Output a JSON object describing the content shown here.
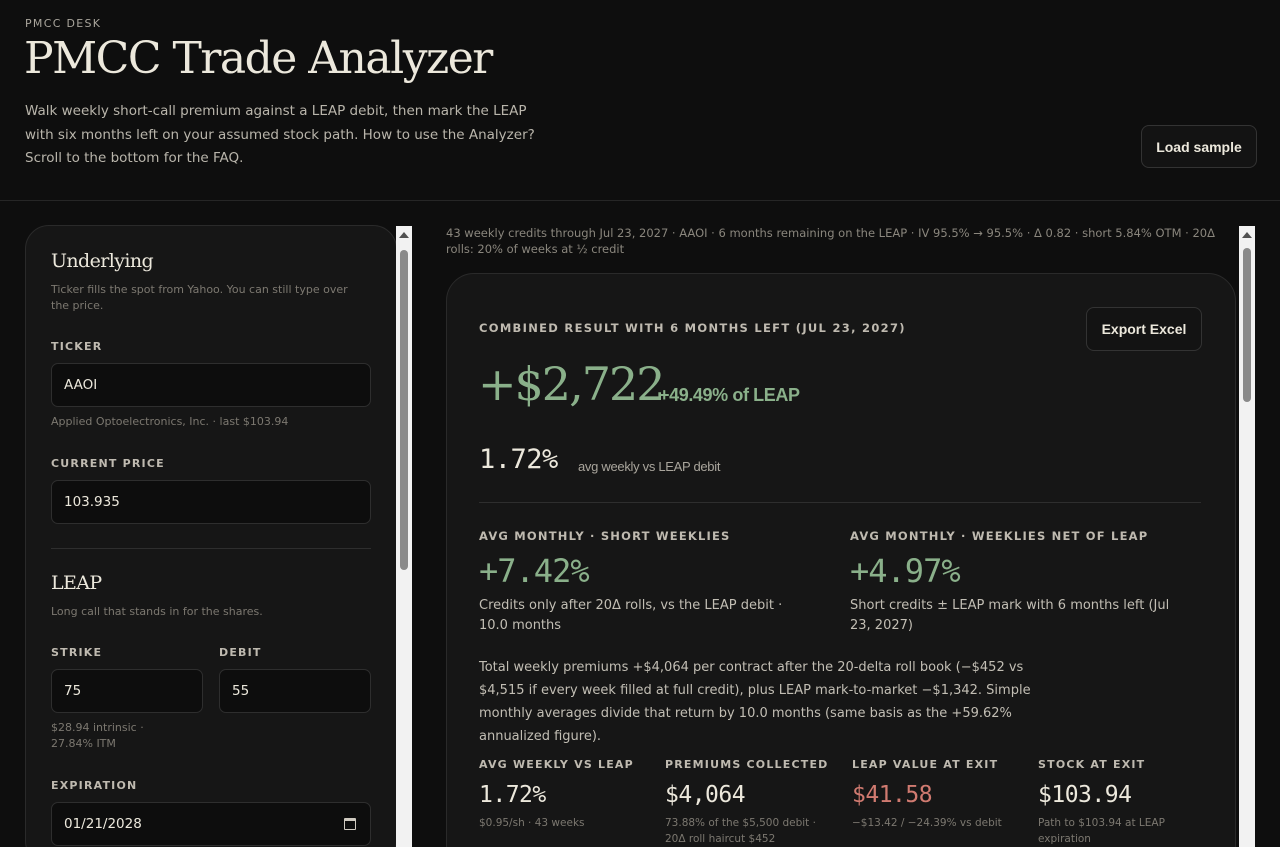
{
  "header": {
    "eyebrow": "PMCC DESK",
    "title": "PMCC Trade Analyzer",
    "subtitle": "Walk weekly short-call premium against a LEAP debit, then mark the LEAP with six months left on your assumed stock path. How to use the Analyzer? Scroll to the bottom for the FAQ.",
    "load_sample_label": "Load sample"
  },
  "underlying": {
    "title": "Underlying",
    "description": "Ticker fills the spot from Yahoo. You can still type over the price.",
    "ticker_label": "TICKER",
    "ticker_value": "AAOI",
    "ticker_hint": "Applied Optoelectronics, Inc. · last $103.94",
    "price_label": "CURRENT PRICE",
    "price_value": "103.935"
  },
  "leap": {
    "title": "LEAP",
    "description": "Long call that stands in for the shares.",
    "strike_label": "STRIKE",
    "strike_value": "75",
    "debit_label": "DEBIT",
    "debit_value": "55",
    "strike_hint_1": "$28.94 intrinsic ·",
    "strike_hint_2": "27.84% ITM",
    "expiration_label": "EXPIRATION",
    "expiration_value": "01/21/2028"
  },
  "meta_line": "43 weekly credits through Jul 23, 2027 · AAOI · 6 months remaining on the LEAP · IV 95.5% → 95.5% · Δ 0.82 · short 5.84% OTM · 20Δ rolls: 20% of weeks at ½ credit",
  "result": {
    "eyebrow": "COMBINED RESULT WITH 6 MONTHS LEFT (JUL 23, 2027)",
    "export_label": "Export Excel",
    "pl_value": "+$2,722",
    "pl_pct": "+49.49% of LEAP",
    "avg_weekly_value": "1.72%",
    "avg_weekly_label": "avg weekly vs LEAP debit",
    "monthly_short": {
      "label": "AVG MONTHLY · SHORT WEEKLIES",
      "value": "+7.42%",
      "desc": "Credits only after 20Δ rolls, vs the LEAP debit · 10.0 months"
    },
    "monthly_net": {
      "label": "AVG MONTHLY · WEEKLIES NET OF LEAP",
      "value": "+4.97%",
      "desc": "Short credits ± LEAP mark with 6 months left (Jul 23, 2027)"
    },
    "summary": "Total weekly premiums +$4,064 per contract after the 20-delta roll book (−$452 vs $4,515 if every week filled at full credit), plus LEAP mark-to-market −$1,342. Simple monthly averages divide that return by 10.0 months (same basis as the +59.62% annualized figure).",
    "kpis": [
      {
        "label": "AVG WEEKLY VS LEAP",
        "value": "1.72%",
        "sub": "$0.95/sh · 43 weeks"
      },
      {
        "label": "PREMIUMS COLLECTED",
        "value": "$4,064",
        "sub": "73.88% of the $5,500 debit · 20Δ roll haircut $452"
      },
      {
        "label": "LEAP VALUE AT EXIT",
        "value": "$41.58",
        "sub": "−$13.42 / −24.39% vs debit"
      },
      {
        "label": "STOCK AT EXIT",
        "value": "$103.94",
        "sub": "Path to $103.94 at LEAP expiration"
      }
    ]
  },
  "colors": {
    "positive": "#8ab08a",
    "negative": "#d07a70",
    "background": "#0e0e0e",
    "panel": "#161616"
  }
}
